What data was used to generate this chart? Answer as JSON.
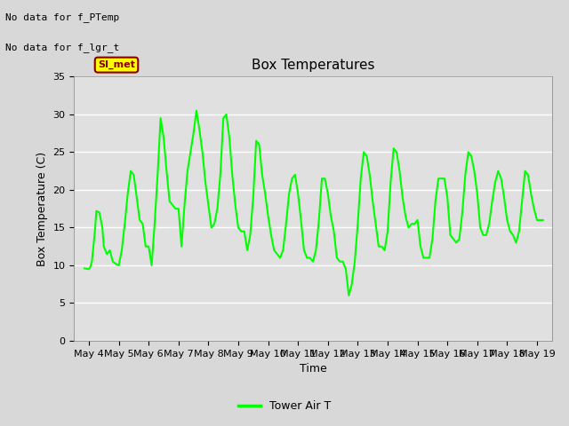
{
  "title": "Box Temperatures",
  "ylabel": "Box Temperature (C)",
  "xlabel": "Time",
  "ylim": [
    0,
    35
  ],
  "xlim_days": [
    3.5,
    19.5
  ],
  "yticks": [
    0,
    5,
    10,
    15,
    20,
    25,
    30,
    35
  ],
  "xtick_labels": [
    "May 4",
    "May 5",
    "May 6",
    "May 7",
    "May 8",
    "May 9",
    "May 10",
    "May 11",
    "May 12",
    "May 13",
    "May 14",
    "May 15",
    "May 16",
    "May 17",
    "May 18",
    "May 19"
  ],
  "xtick_days": [
    4,
    5,
    6,
    7,
    8,
    9,
    10,
    11,
    12,
    13,
    14,
    15,
    16,
    17,
    18,
    19
  ],
  "line_color": "#00FF00",
  "line_width": 1.5,
  "fig_bg_color": "#D8D8D8",
  "plot_bg_color": "#E0E0E0",
  "no_data_text1": "No data for f_PTemp",
  "no_data_text2": "No data for f_lgr_t",
  "si_met_label": "SI_met",
  "legend_label": "Tower Air T",
  "title_fontsize": 11,
  "axis_fontsize": 9,
  "tick_fontsize": 8,
  "x_data": [
    3.85,
    4.0,
    4.05,
    4.1,
    4.2,
    4.25,
    4.35,
    4.45,
    4.5,
    4.6,
    4.7,
    4.8,
    4.9,
    5.0,
    5.1,
    5.2,
    5.3,
    5.4,
    5.5,
    5.6,
    5.7,
    5.8,
    5.9,
    6.0,
    6.1,
    6.2,
    6.3,
    6.4,
    6.5,
    6.6,
    6.7,
    6.8,
    6.9,
    7.0,
    7.1,
    7.2,
    7.3,
    7.4,
    7.5,
    7.6,
    7.7,
    7.8,
    7.9,
    8.0,
    8.1,
    8.2,
    8.3,
    8.4,
    8.5,
    8.6,
    8.7,
    8.8,
    8.9,
    9.0,
    9.1,
    9.2,
    9.3,
    9.4,
    9.5,
    9.6,
    9.7,
    9.8,
    9.9,
    10.0,
    10.1,
    10.2,
    10.3,
    10.4,
    10.5,
    10.6,
    10.7,
    10.8,
    10.9,
    11.0,
    11.1,
    11.2,
    11.3,
    11.4,
    11.5,
    11.6,
    11.7,
    11.8,
    11.9,
    12.0,
    12.1,
    12.2,
    12.3,
    12.4,
    12.5,
    12.6,
    12.7,
    12.8,
    12.9,
    13.0,
    13.1,
    13.2,
    13.3,
    13.4,
    13.5,
    13.6,
    13.7,
    13.8,
    13.9,
    14.0,
    14.1,
    14.2,
    14.3,
    14.4,
    14.5,
    14.6,
    14.7,
    14.8,
    14.9,
    15.0,
    15.1,
    15.2,
    15.3,
    15.4,
    15.5,
    15.6,
    15.7,
    15.8,
    15.9,
    16.0,
    16.1,
    16.2,
    16.3,
    16.4,
    16.5,
    16.6,
    16.7,
    16.8,
    16.9,
    17.0,
    17.1,
    17.2,
    17.3,
    17.4,
    17.5,
    17.6,
    17.7,
    17.8,
    17.9,
    18.0,
    18.1,
    18.2,
    18.3,
    18.4,
    18.5,
    18.6,
    18.7,
    18.8,
    18.9,
    19.0,
    19.2
  ],
  "y_data": [
    9.6,
    9.5,
    9.8,
    10.5,
    14.5,
    17.2,
    17.0,
    15.0,
    12.5,
    11.5,
    12.0,
    10.5,
    10.2,
    10.0,
    12.0,
    15.5,
    19.5,
    22.5,
    22.0,
    19.0,
    16.0,
    15.5,
    12.5,
    12.5,
    10.0,
    15.5,
    22.0,
    29.5,
    27.0,
    22.5,
    18.5,
    18.0,
    17.5,
    17.5,
    12.5,
    18.0,
    22.5,
    25.0,
    27.5,
    30.5,
    28.0,
    25.0,
    21.0,
    18.0,
    15.0,
    15.5,
    17.5,
    22.0,
    29.5,
    30.0,
    27.0,
    22.0,
    18.0,
    15.0,
    14.5,
    14.5,
    12.0,
    14.0,
    19.0,
    26.5,
    26.0,
    22.0,
    19.5,
    16.5,
    14.0,
    12.0,
    11.5,
    11.0,
    12.0,
    15.5,
    19.5,
    21.5,
    22.0,
    19.5,
    16.0,
    12.0,
    11.0,
    11.0,
    10.5,
    12.0,
    16.0,
    21.5,
    21.5,
    19.5,
    16.5,
    14.5,
    11.0,
    10.5,
    10.5,
    9.5,
    6.0,
    7.5,
    10.5,
    15.5,
    21.5,
    25.0,
    24.5,
    22.0,
    18.5,
    15.5,
    12.5,
    12.5,
    12.0,
    14.5,
    21.0,
    25.5,
    25.0,
    22.5,
    19.0,
    16.5,
    15.0,
    15.5,
    15.5,
    16.0,
    12.5,
    11.0,
    11.0,
    11.0,
    13.5,
    18.5,
    21.5,
    21.5,
    21.5,
    19.0,
    14.0,
    13.5,
    13.0,
    13.5,
    17.0,
    22.0,
    25.0,
    24.5,
    22.5,
    19.5,
    15.0,
    14.0,
    14.0,
    15.5,
    18.5,
    21.0,
    22.5,
    21.5,
    19.0,
    16.0,
    14.5,
    14.0,
    13.0,
    14.5,
    18.5,
    22.5,
    22.0,
    19.5,
    17.5,
    16.0,
    16.0
  ]
}
